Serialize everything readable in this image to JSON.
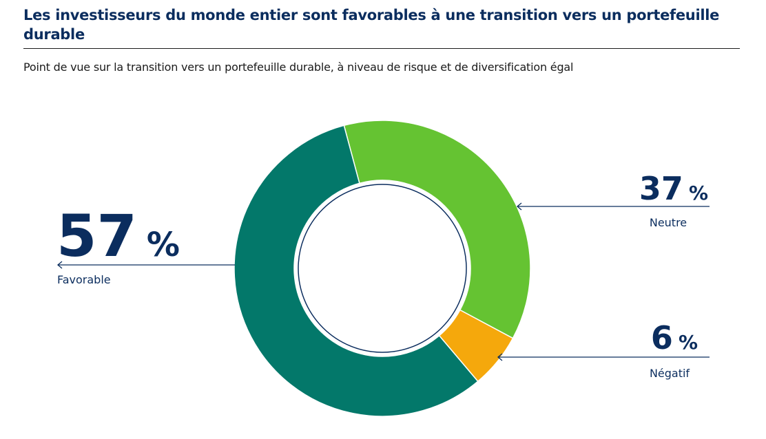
{
  "header": {
    "title": "Les investisseurs du monde entier sont favorables à une transition vers un portefeuille durable",
    "subtitle": "Point de vue sur la transition vers un portefeuille durable, à niveau de risque et de diversification égal"
  },
  "chart_data": {
    "type": "pie",
    "variant": "donut",
    "title": "Les investisseurs du monde entier sont favorables à une transition vers un portefeuille durable",
    "subtitle": "Point de vue sur la transition vers un portefeuille durable, à niveau de risque et de diversification égal",
    "unit": "%",
    "slices": [
      {
        "label": "Neutre",
        "value": 37,
        "display": "37 %",
        "color": "#65c332"
      },
      {
        "label": "Négatif",
        "value": 6,
        "display": "6 %",
        "color": "#f5a80c"
      },
      {
        "label": "Favorable",
        "value": 57,
        "display": "57 %",
        "color": "#03786a"
      }
    ],
    "start_angle_deg": -15,
    "direction": "clockwise",
    "annotation_color": "#0b2d5e"
  }
}
